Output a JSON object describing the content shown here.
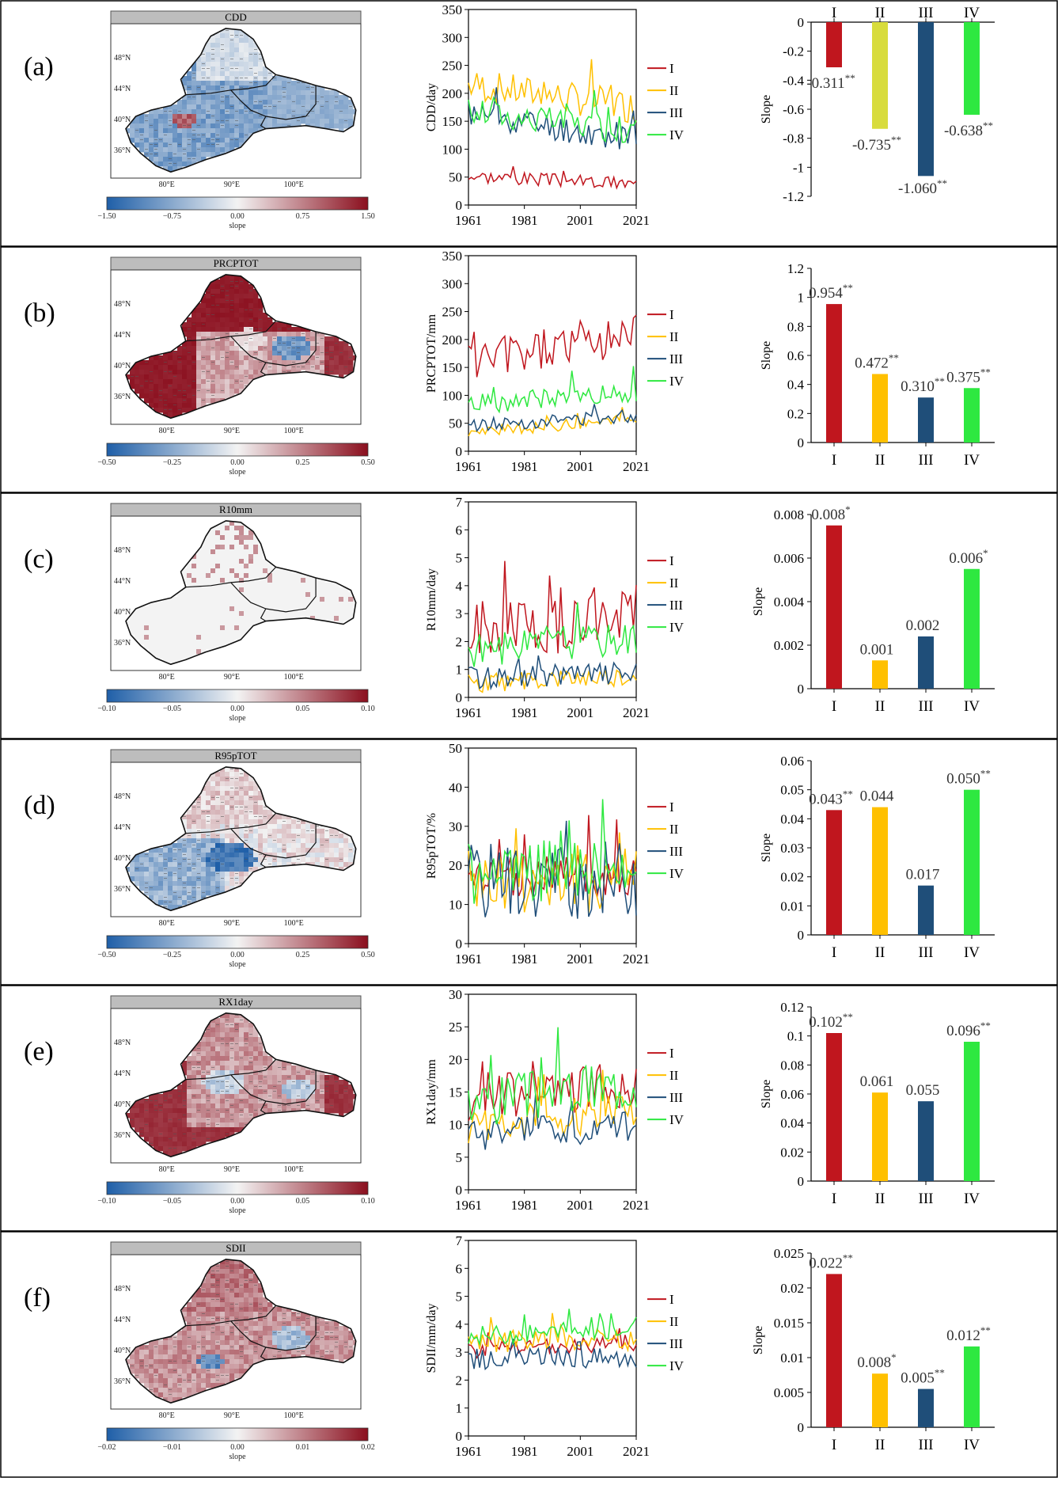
{
  "colors": {
    "I": "#c0161e",
    "II": "#ffc000",
    "III": "#1f4e79",
    "IV": "#2ee840",
    "II_alt": "#d8dc3c",
    "cb_neg": "#1f5fa8",
    "cb_mid": "#f3f3f3",
    "cb_pos": "#8b0f1e"
  },
  "map": {
    "lat_ticks": [
      "48°N",
      "44°N",
      "40°N",
      "36°N"
    ],
    "lon_ticks": [
      "80°E",
      "90°E",
      "100°E"
    ],
    "colorbar_label": "slope"
  },
  "legend_labels": [
    "I",
    "II",
    "III",
    "IV"
  ],
  "chart_data": [
    {
      "panel": "(a)",
      "map": {
        "title": "CDD",
        "colorbar_ticks": [
          "−1.50",
          "−0.75",
          "0.00",
          "0.75",
          "1.50"
        ],
        "pattern": "cdd"
      },
      "line": {
        "type": "line",
        "ylabel": "CDD/day",
        "ylim": [
          0,
          350
        ],
        "yticks": [
          "0",
          "50",
          "100",
          "150",
          "200",
          "250",
          "300",
          "350"
        ],
        "xticks": [
          "1961",
          "1981",
          "2001",
          "2021"
        ],
        "x_range": [
          1961,
          2021
        ],
        "series": [
          {
            "name": "I",
            "mean": 45,
            "amp": 12,
            "trend": -15,
            "seed": 3
          },
          {
            "name": "II",
            "mean": 195,
            "amp": 30,
            "trend": -40,
            "seed": 7,
            "color_key": "II"
          },
          {
            "name": "III",
            "mean": 140,
            "amp": 25,
            "trend": -50,
            "seed": 11
          },
          {
            "name": "IV",
            "mean": 150,
            "amp": 25,
            "trend": -35,
            "seed": 17
          }
        ]
      },
      "bar": {
        "type": "bar",
        "categories": [
          "I",
          "II",
          "III",
          "IV"
        ],
        "values": [
          -0.311,
          -0.735,
          -1.06,
          -0.638
        ],
        "labels": [
          "-0.311",
          "-0.735",
          "-1.060",
          "-0.638"
        ],
        "sig": [
          "**",
          "**",
          "**",
          "**"
        ],
        "bar_colors": [
          "I",
          "II_alt",
          "III",
          "IV"
        ],
        "ylabel": "Slope",
        "ylim": [
          -1.2,
          0
        ],
        "yticks": [
          "0",
          "-0.2",
          "-0.4",
          "-0.6",
          "-0.8",
          "-1",
          "-1.2"
        ],
        "cat_on_top": true
      }
    },
    {
      "panel": "(b)",
      "map": {
        "title": "PRCPTOT",
        "colorbar_ticks": [
          "−0.50",
          "−0.25",
          "0.00",
          "0.25",
          "0.50"
        ],
        "pattern": "prcp"
      },
      "line": {
        "type": "line",
        "ylabel": "PRCPTOT/mm",
        "ylim": [
          0,
          350
        ],
        "yticks": [
          "0",
          "50",
          "100",
          "150",
          "200",
          "250",
          "300",
          "350"
        ],
        "xticks": [
          "1961",
          "1981",
          "2001",
          "2021"
        ],
        "x_range": [
          1961,
          2021
        ],
        "series": [
          {
            "name": "I",
            "mean": 185,
            "amp": 40,
            "trend": 55,
            "seed": 5
          },
          {
            "name": "II",
            "mean": 45,
            "amp": 10,
            "trend": 25,
            "seed": 9
          },
          {
            "name": "III",
            "mean": 55,
            "amp": 12,
            "trend": 18,
            "seed": 13
          },
          {
            "name": "IV",
            "mean": 95,
            "amp": 18,
            "trend": 22,
            "seed": 19
          }
        ]
      },
      "bar": {
        "type": "bar",
        "categories": [
          "I",
          "II",
          "III",
          "IV"
        ],
        "values": [
          0.954,
          0.472,
          0.31,
          0.375
        ],
        "labels": [
          "0.954",
          "0.472",
          "0.310",
          "0.375"
        ],
        "sig": [
          "**",
          "**",
          "**",
          "**"
        ],
        "bar_colors": [
          "I",
          "II",
          "III",
          "IV"
        ],
        "ylabel": "Slope",
        "ylim": [
          0,
          1.2
        ],
        "yticks": [
          "0",
          "0.2",
          "0.4",
          "0.6",
          "0.8",
          "1",
          "1.2"
        ]
      }
    },
    {
      "panel": "(c)",
      "map": {
        "title": "R10mm",
        "colorbar_ticks": [
          "−0.10",
          "−0.05",
          "0.00",
          "0.05",
          "0.10"
        ],
        "pattern": "r10"
      },
      "line": {
        "type": "line",
        "ylabel": "R10mm/day",
        "ylim": [
          0,
          7
        ],
        "yticks": [
          "0",
          "1",
          "2",
          "3",
          "4",
          "5",
          "6",
          "7"
        ],
        "xticks": [
          "1961",
          "1981",
          "2001",
          "2021"
        ],
        "x_range": [
          1961,
          2021
        ],
        "series": [
          {
            "name": "I",
            "mean": 2.6,
            "amp": 1.1,
            "trend": 0.6,
            "seed": 21
          },
          {
            "name": "II",
            "mean": 0.6,
            "amp": 0.35,
            "trend": 0.2,
            "seed": 23
          },
          {
            "name": "III",
            "mean": 0.8,
            "amp": 0.4,
            "trend": 0.2,
            "seed": 29
          },
          {
            "name": "IV",
            "mean": 1.9,
            "amp": 0.6,
            "trend": 0.5,
            "seed": 31
          }
        ]
      },
      "bar": {
        "type": "bar",
        "categories": [
          "I",
          "II",
          "III",
          "IV"
        ],
        "values": [
          0.0075,
          0.0013,
          0.0024,
          0.0055
        ],
        "labels": [
          "0.008",
          "0.001",
          "0.002",
          "0.006"
        ],
        "sig": [
          "*",
          "",
          "",
          "*"
        ],
        "bar_colors": [
          "I",
          "II",
          "III",
          "IV"
        ],
        "ylabel": "Slope",
        "ylim": [
          0,
          0.008
        ],
        "yticks": [
          "0",
          "0.002",
          "0.004",
          "0.006",
          "0.008"
        ]
      }
    },
    {
      "panel": "(d)",
      "map": {
        "title": "R95pTOT",
        "colorbar_ticks": [
          "−0.50",
          "−0.25",
          "0.00",
          "0.25",
          "0.50"
        ],
        "pattern": "r95"
      },
      "line": {
        "type": "line",
        "ylabel": "R95pTOT/%",
        "ylim": [
          0,
          50
        ],
        "yticks": [
          "0",
          "10",
          "20",
          "30",
          "40",
          "50"
        ],
        "xticks": [
          "1961",
          "1981",
          "2001",
          "2021"
        ],
        "x_range": [
          1961,
          2021
        ],
        "series": [
          {
            "name": "I",
            "mean": 17,
            "amp": 6,
            "trend": 2,
            "seed": 37
          },
          {
            "name": "II",
            "mean": 16,
            "amp": 9,
            "trend": 2,
            "seed": 41
          },
          {
            "name": "III",
            "mean": 16,
            "amp": 10,
            "trend": 1,
            "seed": 43
          },
          {
            "name": "IV",
            "mean": 19,
            "amp": 8,
            "trend": 3,
            "seed": 47
          }
        ]
      },
      "bar": {
        "type": "bar",
        "categories": [
          "I",
          "II",
          "III",
          "IV"
        ],
        "values": [
          0.043,
          0.044,
          0.017,
          0.05
        ],
        "labels": [
          "0.043",
          "0.044",
          "0.017",
          "0.050"
        ],
        "sig": [
          "**",
          "",
          "",
          "**"
        ],
        "bar_colors": [
          "I",
          "II",
          "III",
          "IV"
        ],
        "ylabel": "Slope",
        "ylim": [
          0,
          0.06
        ],
        "yticks": [
          "0",
          "0.01",
          "0.02",
          "0.03",
          "0.04",
          "0.05",
          "0.06"
        ]
      }
    },
    {
      "panel": "(e)",
      "map": {
        "title": "RX1day",
        "colorbar_ticks": [
          "−0.10",
          "−0.05",
          "0.00",
          "0.05",
          "0.10"
        ],
        "pattern": "rx1"
      },
      "line": {
        "type": "line",
        "ylabel": "RX1day/mm",
        "ylim": [
          0,
          30
        ],
        "yticks": [
          "0",
          "5",
          "10",
          "15",
          "20",
          "25",
          "30"
        ],
        "xticks": [
          "1961",
          "1981",
          "2001",
          "2021"
        ],
        "x_range": [
          1961,
          2021
        ],
        "series": [
          {
            "name": "I",
            "mean": 15,
            "amp": 3.5,
            "trend": 2,
            "seed": 53
          },
          {
            "name": "II",
            "mean": 11,
            "amp": 3,
            "trend": 2,
            "seed": 59
          },
          {
            "name": "III",
            "mean": 9,
            "amp": 2.5,
            "trend": 1.5,
            "seed": 61
          },
          {
            "name": "IV",
            "mean": 15,
            "amp": 4,
            "trend": 3,
            "seed": 67
          }
        ]
      },
      "bar": {
        "type": "bar",
        "categories": [
          "I",
          "II",
          "III",
          "IV"
        ],
        "values": [
          0.102,
          0.061,
          0.055,
          0.096
        ],
        "labels": [
          "0.102",
          "0.061",
          "0.055",
          "0.096"
        ],
        "sig": [
          "**",
          "",
          "",
          "**"
        ],
        "bar_colors": [
          "I",
          "II",
          "III",
          "IV"
        ],
        "ylabel": "Slope",
        "ylim": [
          0,
          0.12
        ],
        "yticks": [
          "0",
          "0.02",
          "0.04",
          "0.06",
          "0.08",
          "0.1",
          "0.12"
        ]
      }
    },
    {
      "panel": "(f)",
      "map": {
        "title": "SDII",
        "colorbar_ticks": [
          "−0.02",
          "−0.01",
          "0.00",
          "0.01",
          "0.02"
        ],
        "pattern": "sdii"
      },
      "line": {
        "type": "line",
        "ylabel": "SDII/mm/day",
        "ylim": [
          0,
          7
        ],
        "yticks": [
          "0",
          "1",
          "2",
          "3",
          "4",
          "5",
          "6",
          "7"
        ],
        "xticks": [
          "1961",
          "1981",
          "2001",
          "2021"
        ],
        "x_range": [
          1961,
          2021
        ],
        "series": [
          {
            "name": "I",
            "mean": 3.2,
            "amp": 0.3,
            "trend": 0.3,
            "seed": 71
          },
          {
            "name": "II",
            "mean": 3.4,
            "amp": 0.45,
            "trend": 0.1,
            "seed": 73
          },
          {
            "name": "III",
            "mean": 2.8,
            "amp": 0.4,
            "trend": 0.1,
            "seed": 79
          },
          {
            "name": "IV",
            "mean": 3.7,
            "amp": 0.35,
            "trend": 0.2,
            "seed": 83
          }
        ]
      },
      "bar": {
        "type": "bar",
        "categories": [
          "I",
          "II",
          "III",
          "IV"
        ],
        "values": [
          0.022,
          0.0077,
          0.0055,
          0.0116
        ],
        "labels": [
          "0.022",
          "0.008",
          "0.005",
          "0.012"
        ],
        "sig": [
          "**",
          "*",
          "**",
          "**"
        ],
        "bar_colors": [
          "I",
          "II",
          "III",
          "IV"
        ],
        "ylabel": "Slope",
        "ylim": [
          0,
          0.025
        ],
        "yticks": [
          "0",
          "0.005",
          "0.01",
          "0.015",
          "0.02",
          "0.025"
        ]
      }
    }
  ]
}
